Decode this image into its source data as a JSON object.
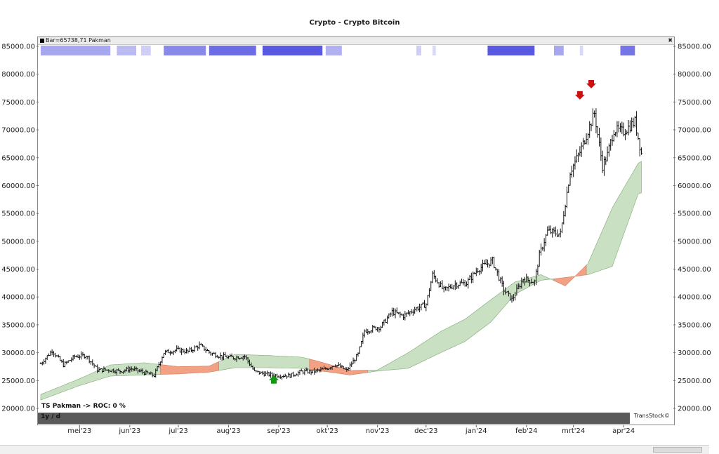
{
  "title": "Crypto - Crypto Bitcoin",
  "header_label": "Bar=65738,71  Pakman",
  "indicator_label": "TS Pakman -> ROC: 0 %",
  "period_label": "1y / d",
  "brand": "TransStock©",
  "icons": [
    "close-icon",
    "scroll-thumb"
  ],
  "colors": {
    "cloud_bull": "#c9e0c3",
    "cloud_bull_edge": "#7fa878",
    "cloud_bear": "#f3a184",
    "signal_down": "#cc1111",
    "signal_up": "#119911",
    "heat": "#3b3bdb"
  },
  "chart_data": {
    "type": "candlestick",
    "title": "Crypto - Crypto Bitcoin",
    "xlabel": "",
    "ylabel": "",
    "ylim": [
      20000,
      85000
    ],
    "y_ticks": [
      20000,
      25000,
      30000,
      35000,
      40000,
      45000,
      50000,
      55000,
      60000,
      65000,
      70000,
      75000,
      80000,
      85000
    ],
    "y_tick_labels": [
      "20000.00",
      "25000.00",
      "30000.00",
      "35000.00",
      "40000.00",
      "45000.00",
      "50000.00",
      "55000.00",
      "60000.00",
      "65000.00",
      "70000.00",
      "75000.00",
      "80000.00",
      "85000.00"
    ],
    "x_tick_labels": [
      "mei'23",
      "jun'23",
      "jul'23",
      "aug'23",
      "sep'23",
      "okt'23",
      "nov'23",
      "dec'23",
      "jan'24",
      "feb'24",
      "mrt'24",
      "apr'24"
    ],
    "x_tick_dates": [
      "2023-05-01",
      "2023-06-01",
      "2023-07-01",
      "2023-08-01",
      "2023-09-01",
      "2023-10-01",
      "2023-11-01",
      "2023-12-01",
      "2024-01-01",
      "2024-02-01",
      "2024-03-01",
      "2024-04-01"
    ],
    "x_range": [
      "2023-04-07",
      "2024-04-30"
    ],
    "grid": false,
    "last_close": 65738.71,
    "price_path": [
      [
        "2023-04-07",
        28000
      ],
      [
        "2023-04-14",
        30400
      ],
      [
        "2023-04-21",
        27800
      ],
      [
        "2023-04-28",
        29300
      ],
      [
        "2023-05-05",
        29500
      ],
      [
        "2023-05-12",
        26900
      ],
      [
        "2023-05-19",
        26900
      ],
      [
        "2023-05-26",
        26700
      ],
      [
        "2023-06-02",
        27100
      ],
      [
        "2023-06-09",
        26500
      ],
      [
        "2023-06-16",
        25900
      ],
      [
        "2023-06-22",
        30000
      ],
      [
        "2023-06-30",
        30500
      ],
      [
        "2023-07-07",
        30200
      ],
      [
        "2023-07-14",
        31300
      ],
      [
        "2023-07-21",
        29900
      ],
      [
        "2023-07-28",
        29300
      ],
      [
        "2023-08-04",
        29100
      ],
      [
        "2023-08-11",
        29400
      ],
      [
        "2023-08-17",
        26600
      ],
      [
        "2023-08-25",
        26100
      ],
      [
        "2023-09-01",
        25900
      ],
      [
        "2023-09-08",
        25900
      ],
      [
        "2023-09-15",
        26600
      ],
      [
        "2023-09-22",
        26600
      ],
      [
        "2023-09-29",
        27000
      ],
      [
        "2023-10-06",
        27900
      ],
      [
        "2023-10-13",
        26800
      ],
      [
        "2023-10-20",
        29700
      ],
      [
        "2023-10-24",
        33900
      ],
      [
        "2023-11-03",
        34700
      ],
      [
        "2023-11-10",
        37300
      ],
      [
        "2023-11-17",
        36600
      ],
      [
        "2023-11-24",
        37800
      ],
      [
        "2023-12-01",
        38700
      ],
      [
        "2023-12-05",
        44000
      ],
      [
        "2023-12-12",
        41200
      ],
      [
        "2023-12-19",
        42300
      ],
      [
        "2023-12-26",
        42500
      ],
      [
        "2024-01-02",
        45000
      ],
      [
        "2024-01-11",
        46500
      ],
      [
        "2024-01-18",
        41300
      ],
      [
        "2024-01-23",
        39500
      ],
      [
        "2024-01-30",
        43300
      ],
      [
        "2024-02-06",
        42700
      ],
      [
        "2024-02-09",
        47500
      ],
      [
        "2024-02-14",
        51800
      ],
      [
        "2024-02-22",
        51300
      ],
      [
        "2024-02-28",
        62500
      ],
      [
        "2024-03-05",
        66000
      ],
      [
        "2024-03-08",
        68300
      ],
      [
        "2024-03-14",
        73000
      ],
      [
        "2024-03-19",
        63500
      ],
      [
        "2024-03-22",
        65500
      ],
      [
        "2024-03-26",
        70000
      ],
      [
        "2024-04-01",
        69700
      ],
      [
        "2024-04-08",
        71500
      ],
      [
        "2024-04-12",
        65738.71
      ]
    ],
    "cloud_span_a": [
      [
        "2023-04-07",
        22500
      ],
      [
        "2023-04-30",
        25200
      ],
      [
        "2023-05-20",
        27800
      ],
      [
        "2023-06-10",
        28200
      ],
      [
        "2023-07-01",
        27500
      ],
      [
        "2023-07-20",
        27600
      ],
      [
        "2023-08-05",
        29700
      ],
      [
        "2023-08-25",
        29500
      ],
      [
        "2023-09-15",
        29200
      ],
      [
        "2023-09-25",
        28500
      ],
      [
        "2023-10-15",
        26800
      ],
      [
        "2023-11-01",
        26900
      ],
      [
        "2023-11-20",
        30000
      ],
      [
        "2023-12-10",
        33800
      ],
      [
        "2023-12-25",
        36000
      ],
      [
        "2024-01-10",
        39500
      ],
      [
        "2024-01-25",
        42700
      ],
      [
        "2024-02-10",
        44000
      ],
      [
        "2024-02-25",
        42000
      ],
      [
        "2024-03-10",
        46000
      ],
      [
        "2024-03-25",
        56000
      ],
      [
        "2024-04-10",
        64000
      ],
      [
        "2024-04-30",
        67500
      ]
    ],
    "cloud_span_b": [
      [
        "2023-04-07",
        21500
      ],
      [
        "2023-04-30",
        24000
      ],
      [
        "2023-05-20",
        25800
      ],
      [
        "2023-06-10",
        26000
      ],
      [
        "2023-07-01",
        26200
      ],
      [
        "2023-07-20",
        26500
      ],
      [
        "2023-08-05",
        27300
      ],
      [
        "2023-08-25",
        27300
      ],
      [
        "2023-09-15",
        27200
      ],
      [
        "2023-09-25",
        26800
      ],
      [
        "2023-10-15",
        26000
      ],
      [
        "2023-11-01",
        26700
      ],
      [
        "2023-11-20",
        27200
      ],
      [
        "2023-12-10",
        30000
      ],
      [
        "2023-12-25",
        32000
      ],
      [
        "2024-01-10",
        35500
      ],
      [
        "2024-01-25",
        40500
      ],
      [
        "2024-02-10",
        43000
      ],
      [
        "2024-02-25",
        43500
      ],
      [
        "2024-03-10",
        44000
      ],
      [
        "2024-03-25",
        45500
      ],
      [
        "2024-04-10",
        58500
      ],
      [
        "2024-04-30",
        60500
      ]
    ],
    "signals": [
      {
        "date": "2023-08-29",
        "price": 25200,
        "type": "buy"
      },
      {
        "date": "2024-03-05",
        "price": 76200,
        "type": "sell"
      },
      {
        "date": "2024-03-12",
        "price": 78200,
        "type": "sell"
      }
    ],
    "heat_segments": [
      [
        "2023-04-07",
        "2023-05-20",
        0.45
      ],
      [
        "2023-05-24",
        "2023-06-05",
        0.35
      ],
      [
        "2023-06-08",
        "2023-06-14",
        0.25
      ],
      [
        "2023-06-22",
        "2023-07-18",
        0.6
      ],
      [
        "2023-07-20",
        "2023-08-18",
        0.75
      ],
      [
        "2023-08-22",
        "2023-09-28",
        0.85
      ],
      [
        "2023-09-30",
        "2023-10-10",
        0.4
      ],
      [
        "2023-11-25",
        "2023-11-28",
        0.25
      ],
      [
        "2023-12-05",
        "2023-12-07",
        0.2
      ],
      [
        "2024-01-08",
        "2024-02-06",
        0.85
      ],
      [
        "2024-02-18",
        "2024-02-24",
        0.45
      ],
      [
        "2024-03-05",
        "2024-03-07",
        0.2
      ],
      [
        "2024-03-30",
        "2024-04-08",
        0.7
      ]
    ]
  }
}
